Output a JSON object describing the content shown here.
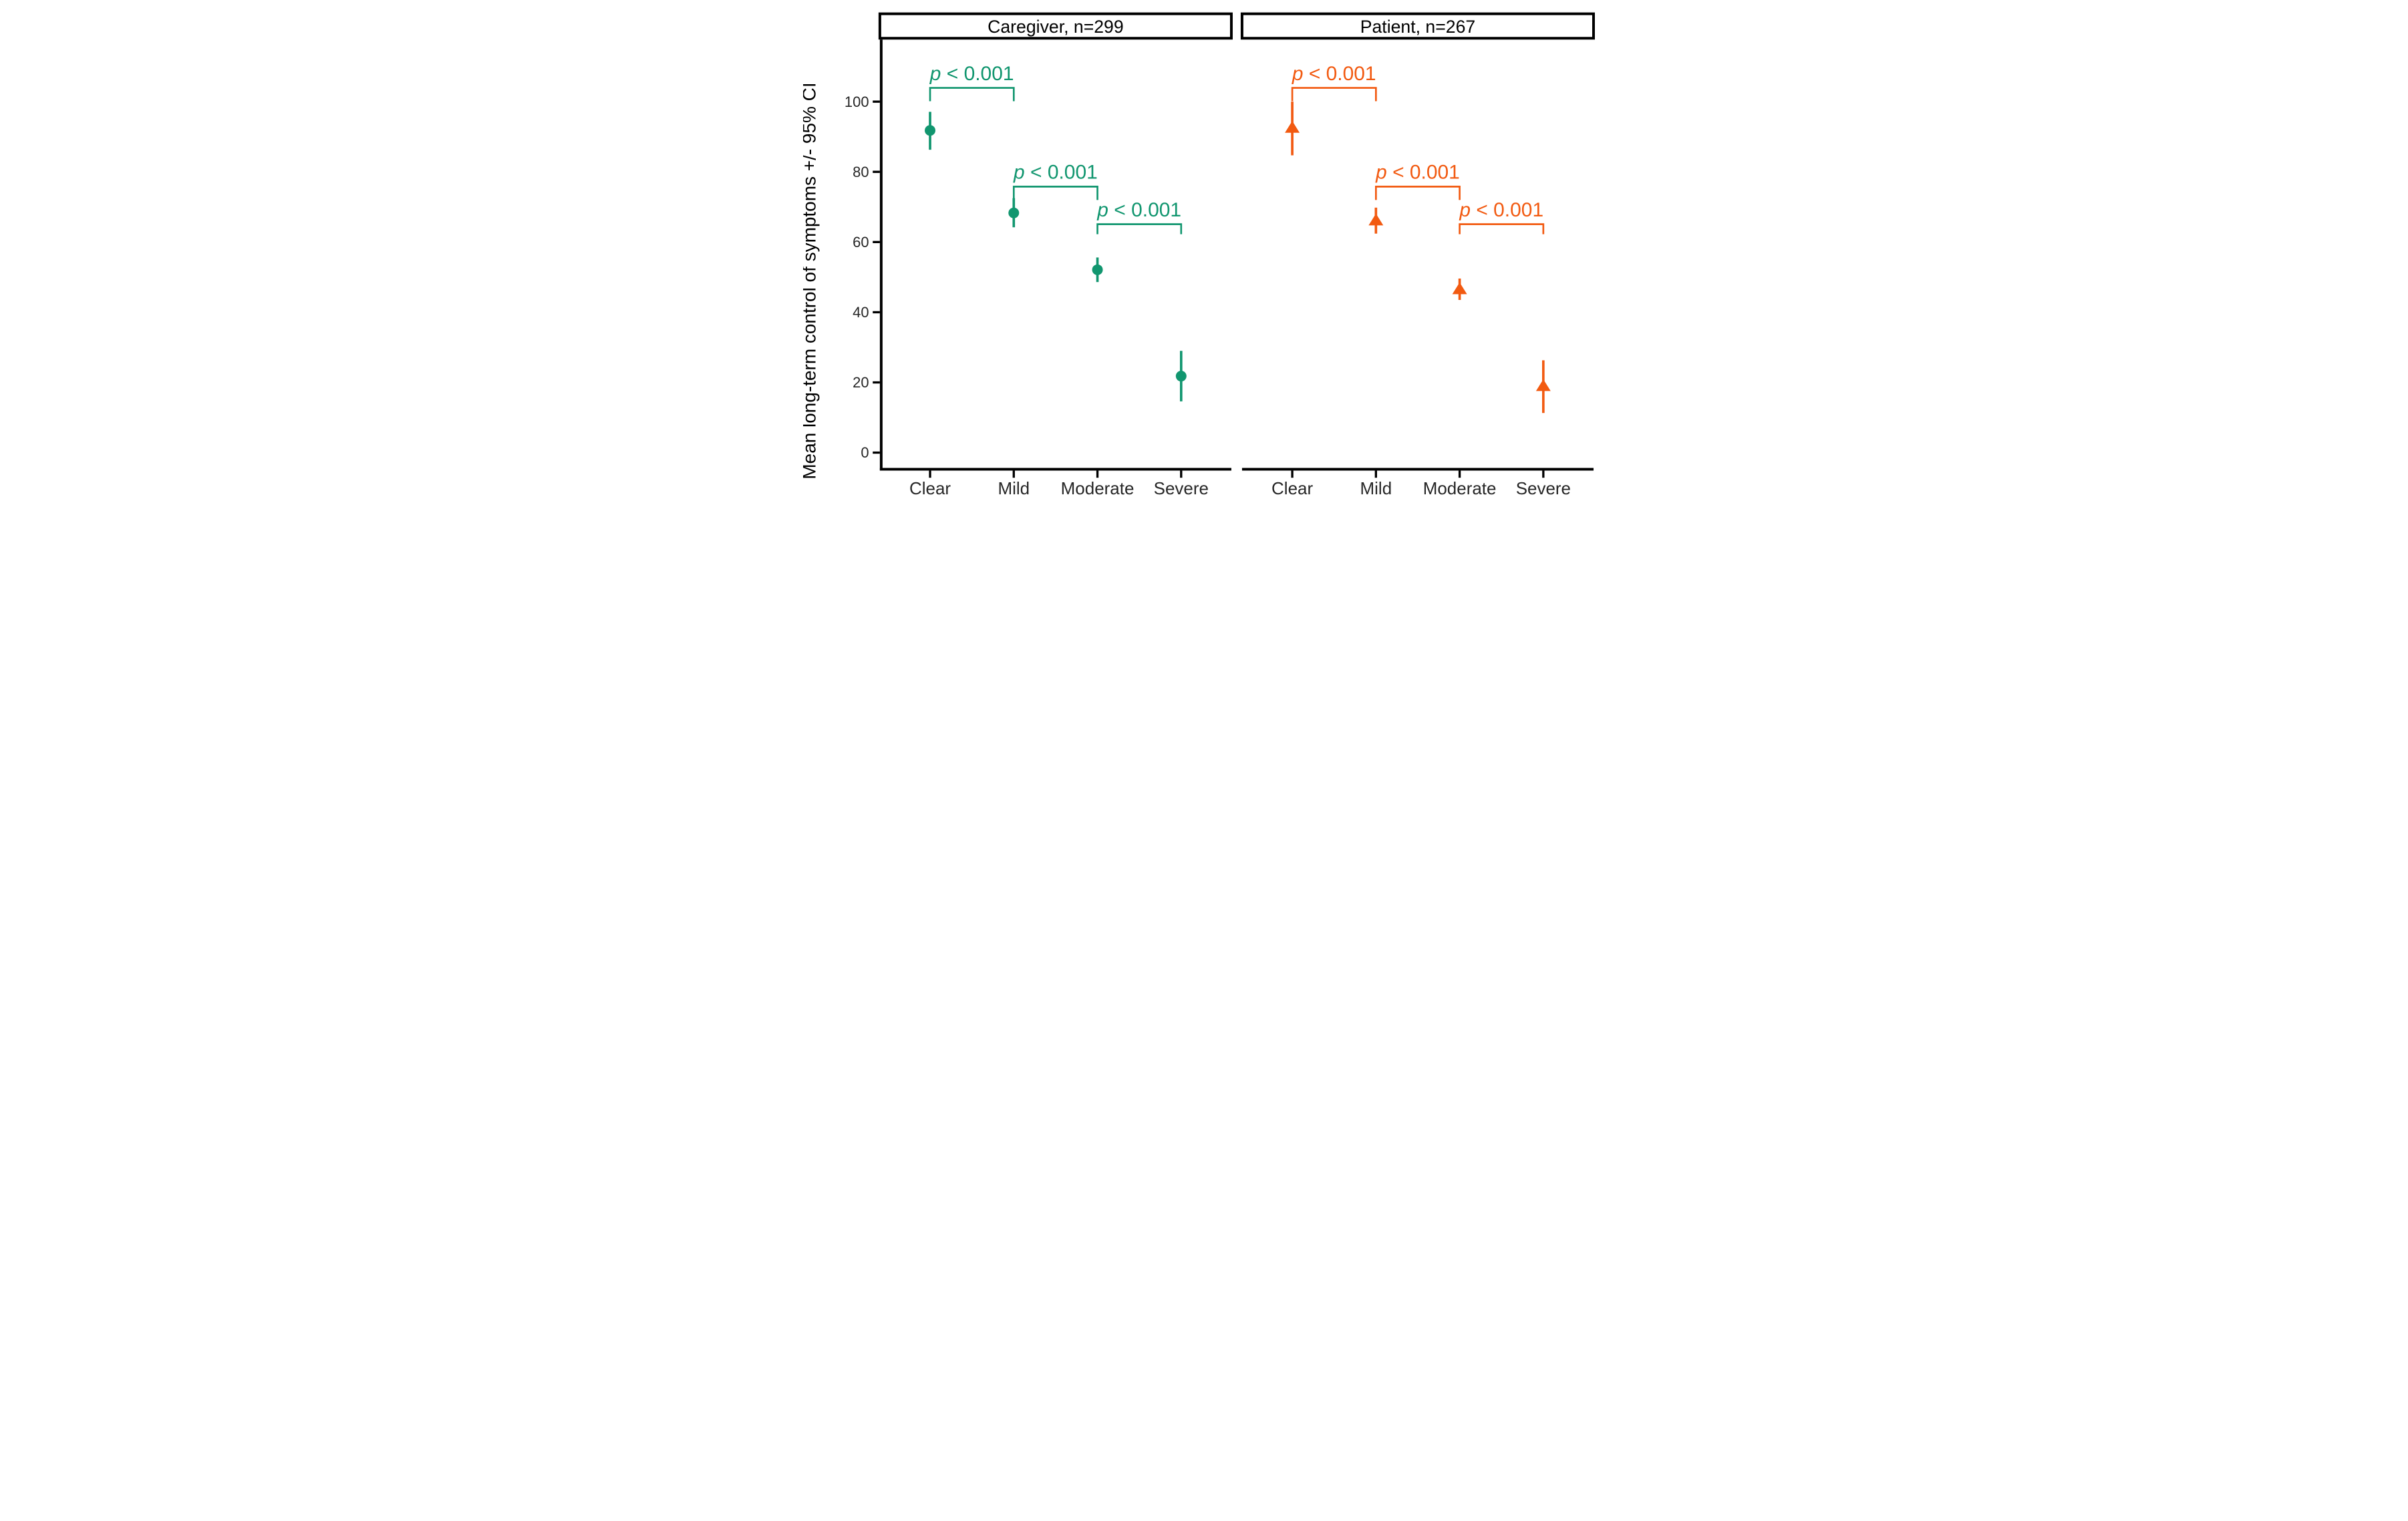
{
  "page": {
    "background": "#ffffff"
  },
  "chart_data": {
    "type": "scatter",
    "subtype": "point-estimate-with-95ci-error-bars",
    "title": "",
    "xlabel": "",
    "ylabel": "Mean long-term control of symptoms +/- 95% CI",
    "ylim": [
      0,
      100
    ],
    "y_ticks": [
      "0",
      "20",
      "40",
      "60",
      "80",
      "100"
    ],
    "grid": "off",
    "legend": "none",
    "axis_color": "#000000",
    "tick_label_color": "#262626",
    "categories": [
      "Clear",
      "Mild",
      "Moderate",
      "Severe"
    ],
    "facets": [
      {
        "label": "Caregiver, n=299",
        "marker": "circle",
        "color": "#11966F",
        "points": [
          {
            "category": "Clear",
            "mean": 91.8,
            "ci_low": 86.3,
            "ci_high": 97.1
          },
          {
            "category": "Mild",
            "mean": 68.3,
            "ci_low": 64.2,
            "ci_high": 72.5
          },
          {
            "category": "Moderate",
            "mean": 52.1,
            "ci_low": 48.6,
            "ci_high": 55.6
          },
          {
            "category": "Severe",
            "mean": 21.8,
            "ci_low": 14.6,
            "ci_high": 29.0
          }
        ],
        "comparisons": [
          {
            "between": [
              "Clear",
              "Mild"
            ],
            "label": "p < 0.001"
          },
          {
            "between": [
              "Mild",
              "Moderate"
            ],
            "label": "p < 0.001"
          },
          {
            "between": [
              "Moderate",
              "Severe"
            ],
            "label": "p < 0.001"
          }
        ]
      },
      {
        "label": "Patient, n=267",
        "marker": "triangle",
        "color": "#F25A11",
        "points": [
          {
            "category": "Clear",
            "mean": 92.6,
            "ci_low": 84.7,
            "ci_high": 100.0
          },
          {
            "category": "Mild",
            "mean": 66.2,
            "ci_low": 62.4,
            "ci_high": 69.8
          },
          {
            "category": "Moderate",
            "mean": 46.6,
            "ci_low": 43.5,
            "ci_high": 49.6
          },
          {
            "category": "Severe",
            "mean": 19.0,
            "ci_low": 11.3,
            "ci_high": 26.3
          }
        ],
        "comparisons": [
          {
            "between": [
              "Clear",
              "Mild"
            ],
            "label": "p < 0.001"
          },
          {
            "between": [
              "Mild",
              "Moderate"
            ],
            "label": "p < 0.001"
          },
          {
            "between": [
              "Moderate",
              "Severe"
            ],
            "label": "p < 0.001"
          }
        ]
      }
    ]
  }
}
